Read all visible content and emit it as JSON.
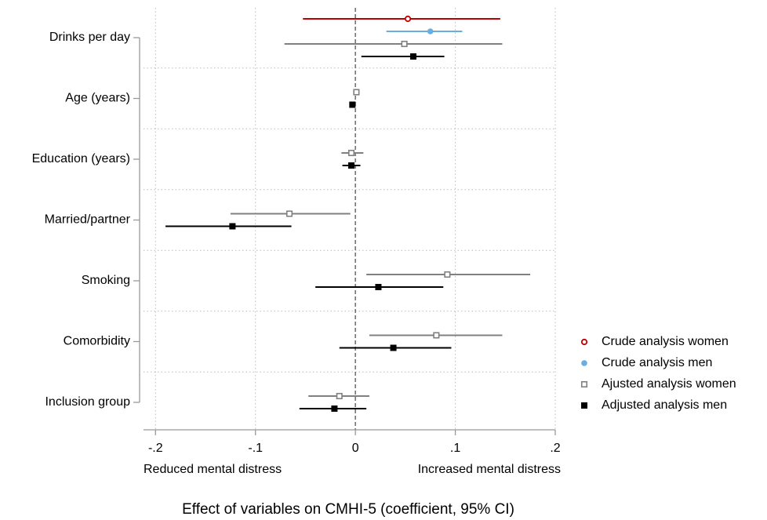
{
  "chart_data": {
    "type": "forest",
    "x_label": "Effect of variables on CMHI-5 (coefficient, 95% CI)",
    "annotations": [
      "Reduced mental distress",
      "Increased mental distress"
    ],
    "categories": [
      "Drinks per day",
      "Age (years)",
      "Education (years)",
      "Married/partner",
      "Smoking",
      "Comorbidity",
      "Inclusion group"
    ],
    "xlim": [
      -0.212,
      0.2
    ],
    "xticks": [
      {
        "value": -0.2,
        "label": "-.2"
      },
      {
        "value": -0.1,
        "label": "-.1"
      },
      0,
      {
        "value": 0.1,
        "label": ".1"
      },
      {
        "value": 0.2,
        "label": ".2"
      }
    ],
    "grid": true,
    "legend": "right",
    "series": [
      {
        "name": "Crude analysis women",
        "color": "#c00000",
        "marker": "circle-open",
        "values": [
          0.0525,
          null,
          null,
          null,
          null,
          null,
          null
        ],
        "lower": [
          -0.0525,
          null,
          null,
          null,
          null,
          null,
          null
        ],
        "upper": [
          0.145,
          null,
          null,
          null,
          null,
          null,
          null
        ]
      },
      {
        "name": "Crude analysis men",
        "color": "#6aaee0",
        "marker": "circle",
        "values": [
          0.075,
          null,
          null,
          null,
          null,
          null,
          null
        ],
        "lower": [
          0.031,
          null,
          null,
          null,
          null,
          null,
          null
        ],
        "upper": [
          0.107,
          null,
          null,
          null,
          null,
          null,
          null
        ]
      },
      {
        "name": "Ajusted analysis women",
        "color": "#808080",
        "marker": "square-open",
        "values": [
          0.049,
          0.001,
          -0.004,
          -0.066,
          0.092,
          0.081,
          -0.016
        ],
        "lower": [
          -0.071,
          0,
          -0.014,
          -0.125,
          0.011,
          0.014,
          -0.047
        ],
        "upper": [
          0.147,
          0.002,
          0.008,
          -0.005,
          0.175,
          0.147,
          0.014
        ]
      },
      {
        "name": "Adjusted analysis men",
        "color": "#000000",
        "marker": "square",
        "values": [
          0.058,
          -0.003,
          -0.004,
          -0.123,
          0.023,
          0.038,
          -0.021
        ],
        "lower": [
          0.006,
          -0.004,
          -0.013,
          -0.19,
          -0.04,
          -0.016,
          -0.056
        ],
        "upper": [
          0.089,
          -0.002,
          0.005,
          -0.064,
          0.088,
          0.096,
          0.011
        ]
      }
    ]
  }
}
